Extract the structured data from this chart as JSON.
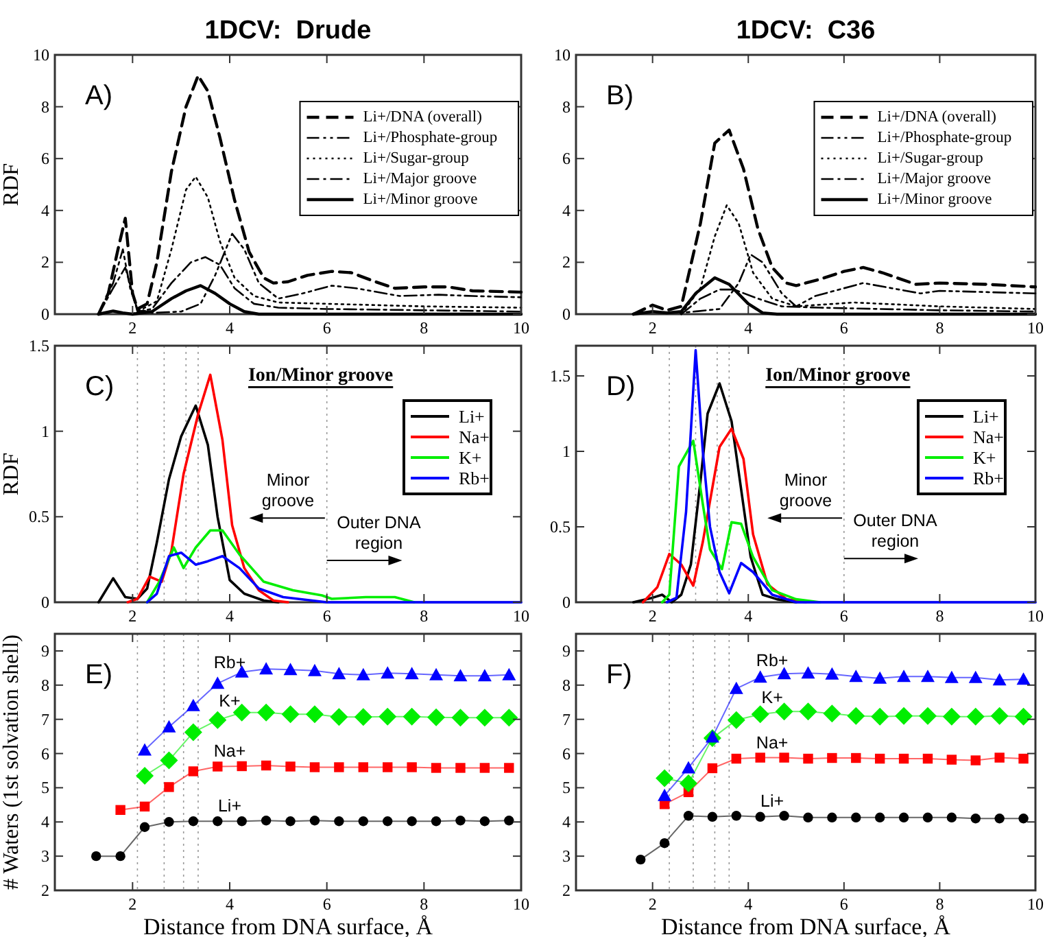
{
  "chart_data": [
    {
      "type": "line",
      "title": "1DCV:  Drude",
      "ylabel": "RDF",
      "annotations": [
        "A)"
      ],
      "xlim": [
        0.4,
        10
      ],
      "xticks": [
        2,
        4,
        6,
        8,
        10
      ],
      "ylim": [
        0,
        10
      ],
      "yticks": [
        0,
        2,
        4,
        6,
        8,
        10
      ],
      "legend": "top right",
      "series": [
        {
          "name": "Li+/DNA (overall)",
          "color": "#000000",
          "line_style": "dashed",
          "x": [
            1.3,
            1.5,
            1.7,
            1.85,
            2.0,
            2.1,
            2.3,
            2.5,
            2.8,
            3.1,
            3.35,
            3.55,
            3.8,
            4.1,
            4.4,
            4.7,
            4.9,
            5.2,
            5.6,
            6.1,
            6.5,
            7,
            7.4,
            8,
            8.5,
            9,
            10
          ],
          "values": [
            0,
            0.8,
            2.5,
            3.7,
            0.8,
            0.2,
            0.4,
            2,
            5.5,
            8,
            9.2,
            8.6,
            6.8,
            4.4,
            2.4,
            1.4,
            1.2,
            1.25,
            1.5,
            1.65,
            1.6,
            1.25,
            1.0,
            1.05,
            1.05,
            0.9,
            0.85
          ]
        },
        {
          "name": "Li+/Phosphate-group",
          "color": "#000000",
          "line_style": "dashdotdot",
          "x": [
            1.3,
            1.6,
            1.8,
            1.95,
            2.1,
            2.4,
            3.0,
            3.4,
            3.7,
            4.05,
            4.3,
            4.6,
            5.0,
            5.5,
            6.1,
            6.6,
            7.5,
            8.3,
            9,
            10
          ],
          "values": [
            0,
            1.2,
            2.5,
            1.0,
            0.2,
            0.05,
            0.1,
            0.4,
            1.5,
            3.1,
            2.5,
            1.2,
            0.6,
            0.8,
            1.1,
            1.0,
            0.7,
            0.75,
            0.7,
            0.65
          ]
        },
        {
          "name": "Li+/Sugar-group",
          "color": "#000000",
          "line_style": "dotted",
          "x": [
            2.0,
            2.5,
            2.8,
            3.1,
            3.3,
            3.55,
            3.8,
            4.1,
            4.5,
            5,
            6,
            8,
            10
          ],
          "values": [
            0,
            0.5,
            2.5,
            4.8,
            5.3,
            4.5,
            2.8,
            1.4,
            0.7,
            0.45,
            0.4,
            0.3,
            0.25
          ]
        },
        {
          "name": "Li+/Major groove",
          "color": "#000000",
          "line_style": "dashdot",
          "x": [
            1.3,
            1.6,
            1.85,
            2.0,
            2.1,
            2.4,
            2.8,
            3.2,
            3.5,
            3.8,
            4.1,
            4.5,
            5,
            6,
            8,
            10
          ],
          "values": [
            0,
            1.0,
            1.8,
            0.8,
            0.1,
            0.2,
            1.2,
            2.0,
            2.2,
            1.9,
            1.0,
            0.4,
            0.25,
            0.2,
            0.15,
            0.1
          ]
        },
        {
          "name": "Li+/Minor groove",
          "color": "#000000",
          "line_style": "solid",
          "x": [
            1.3,
            1.6,
            1.8,
            2.0,
            2.4,
            2.8,
            3.1,
            3.4,
            3.7,
            4.0,
            4.3,
            4.6,
            10
          ],
          "values": [
            0,
            0.12,
            0.05,
            0,
            0.1,
            0.6,
            0.9,
            1.1,
            0.8,
            0.4,
            0.1,
            0,
            0
          ]
        }
      ]
    },
    {
      "type": "line",
      "title": "1DCV:  C36",
      "annotations": [
        "B)"
      ],
      "xlim": [
        0.4,
        10
      ],
      "xticks": [
        2,
        4,
        6,
        8,
        10
      ],
      "ylim": [
        0,
        10
      ],
      "yticks": [
        0,
        2,
        4,
        6,
        8,
        10
      ],
      "legend": "top right",
      "series": [
        {
          "name": "Li+/DNA (overall)",
          "color": "#000000",
          "line_style": "dashed",
          "x": [
            1.6,
            2.0,
            2.3,
            2.6,
            3.0,
            3.3,
            3.6,
            3.9,
            4.2,
            4.5,
            4.8,
            5.0,
            5.5,
            6.0,
            6.4,
            6.8,
            7.5,
            8,
            9,
            10
          ],
          "values": [
            0,
            0.35,
            0.15,
            0.3,
            3.5,
            6.6,
            7.1,
            5.6,
            3.3,
            1.8,
            1.2,
            1.1,
            1.35,
            1.65,
            1.8,
            1.6,
            1.15,
            1.2,
            1.15,
            1.05
          ]
        },
        {
          "name": "Li+/Phosphate-group",
          "color": "#000000",
          "line_style": "dashdotdot",
          "x": [
            1.6,
            2.0,
            2.6,
            3.4,
            3.8,
            4.05,
            4.3,
            4.7,
            5.0,
            5.4,
            6.0,
            6.4,
            7,
            7.6,
            8,
            9,
            10
          ],
          "values": [
            0,
            0.1,
            0.05,
            0.2,
            1.2,
            2.3,
            2.0,
            0.8,
            0.3,
            0.7,
            1.0,
            1.2,
            1.0,
            0.8,
            0.9,
            0.85,
            0.8
          ]
        },
        {
          "name": "Li+/Sugar-group",
          "color": "#000000",
          "line_style": "dotted",
          "x": [
            2.6,
            3.0,
            3.3,
            3.55,
            3.8,
            4.1,
            4.5,
            5,
            6.2,
            8,
            10
          ],
          "values": [
            0,
            1.0,
            3.0,
            4.2,
            3.5,
            1.6,
            0.6,
            0.3,
            0.45,
            0.3,
            0.2
          ]
        },
        {
          "name": "Li+/Major groove",
          "color": "#000000",
          "line_style": "dashdot",
          "x": [
            2.6,
            3.0,
            3.4,
            3.7,
            4.2,
            4.7,
            5.5,
            8,
            10
          ],
          "values": [
            0,
            0.6,
            0.95,
            0.95,
            0.6,
            0.3,
            0.25,
            0.15,
            0.1
          ]
        },
        {
          "name": "Li+/Minor groove",
          "color": "#000000",
          "line_style": "solid",
          "x": [
            1.6,
            2.0,
            2.3,
            2.6,
            2.9,
            3.3,
            3.6,
            4.0,
            4.3,
            4.6,
            10
          ],
          "values": [
            0,
            0.1,
            0.05,
            0.1,
            0.8,
            1.4,
            1.15,
            0.4,
            0.05,
            0,
            0
          ]
        }
      ]
    },
    {
      "type": "line",
      "ylabel": "RDF",
      "annotations": [
        "C)",
        "Ion/Minor groove",
        "Minor groove",
        {
          "text": "Outer DNA region",
          "x": 6,
          "y": 0.245
        }
      ],
      "xlim": [
        0.4,
        10
      ],
      "xticks": [
        2,
        4,
        6,
        8,
        10
      ],
      "ylim": [
        0,
        1.5
      ],
      "yticks": [
        0,
        0.5,
        1,
        1.5
      ],
      "legend": "top right",
      "ref_lines": [
        {
          "axis": "x",
          "value": 2.1,
          "line_style": "dotted"
        },
        {
          "axis": "x",
          "value": 2.65,
          "line_style": "dotted"
        },
        {
          "axis": "x",
          "value": 3.1,
          "line_style": "dotted"
        },
        {
          "axis": "x",
          "value": 3.35,
          "line_style": "dotted"
        },
        {
          "axis": "x",
          "value": 6,
          "line_style": "dotted"
        }
      ],
      "series": [
        {
          "name": "Li+",
          "color": "#000000",
          "x": [
            1.3,
            1.6,
            1.85,
            2.1,
            2.3,
            2.5,
            2.75,
            3.0,
            3.3,
            3.55,
            3.75,
            4.0,
            4.3,
            4.7,
            5
          ],
          "values": [
            0,
            0.14,
            0.03,
            0.02,
            0.08,
            0.35,
            0.72,
            0.97,
            1.15,
            0.92,
            0.5,
            0.13,
            0.05,
            0.01,
            0
          ]
        },
        {
          "name": "Na+",
          "color": "#ff0000",
          "x": [
            1.9,
            2.1,
            2.35,
            2.6,
            2.8,
            3.05,
            3.35,
            3.6,
            3.85,
            4.05,
            4.3,
            4.6,
            4.9,
            5.2
          ],
          "values": [
            0,
            0.02,
            0.15,
            0.12,
            0.3,
            0.75,
            1.1,
            1.33,
            0.95,
            0.45,
            0.2,
            0.07,
            0.01,
            0
          ]
        },
        {
          "name": "K+",
          "color": "#00ee00",
          "x": [
            2.3,
            2.55,
            2.85,
            3.05,
            3.3,
            3.6,
            3.85,
            4.2,
            4.7,
            5.3,
            5.9,
            6.1,
            6.8,
            7.4,
            7.8
          ],
          "values": [
            0,
            0.12,
            0.32,
            0.2,
            0.32,
            0.42,
            0.42,
            0.28,
            0.12,
            0.07,
            0.04,
            0.02,
            0.03,
            0.03,
            0
          ]
        },
        {
          "name": "Rb+",
          "color": "#0000ff",
          "x": [
            2.3,
            2.5,
            2.75,
            3.0,
            3.3,
            3.55,
            3.85,
            4.2,
            4.6,
            5.1,
            5.7,
            6,
            10
          ],
          "values": [
            0,
            0.05,
            0.27,
            0.29,
            0.22,
            0.24,
            0.27,
            0.2,
            0.08,
            0.03,
            0.01,
            0,
            0
          ]
        }
      ]
    },
    {
      "type": "line",
      "annotations": [
        "D)",
        "Ion/Minor groove",
        "Minor groove",
        {
          "text": "Outer DNA region",
          "x": 6,
          "y": 0.29
        }
      ],
      "xlim": [
        0.4,
        10
      ],
      "xticks": [
        2,
        4,
        6,
        8,
        10
      ],
      "ylim": [
        0,
        1.7
      ],
      "yticks": [
        0,
        0.5,
        1,
        1.5
      ],
      "legend": "top right",
      "ref_lines": [
        {
          "axis": "x",
          "value": 2.35,
          "line_style": "dotted"
        },
        {
          "axis": "x",
          "value": 2.9,
          "line_style": "dotted"
        },
        {
          "axis": "x",
          "value": 3.35,
          "line_style": "dotted"
        },
        {
          "axis": "x",
          "value": 3.6,
          "line_style": "dotted"
        },
        {
          "axis": "x",
          "value": 6,
          "line_style": "dotted"
        }
      ],
      "series": [
        {
          "name": "Li+",
          "color": "#000000",
          "x": [
            1.6,
            2.0,
            2.2,
            2.4,
            2.6,
            2.8,
            3.0,
            3.15,
            3.4,
            3.65,
            3.85,
            4.05,
            4.3,
            4.6,
            5
          ],
          "values": [
            0,
            0.03,
            0.05,
            0,
            0.05,
            0.25,
            0.8,
            1.25,
            1.45,
            1.2,
            0.75,
            0.3,
            0.05,
            0.02,
            0
          ]
        },
        {
          "name": "Na+",
          "color": "#ff0000",
          "x": [
            1.8,
            2.1,
            2.35,
            2.6,
            2.85,
            3.05,
            3.4,
            3.65,
            3.9,
            4.1,
            4.4,
            4.8,
            5.2
          ],
          "values": [
            0,
            0.1,
            0.32,
            0.25,
            0.11,
            0.4,
            1.03,
            1.15,
            0.95,
            0.45,
            0.12,
            0.02,
            0
          ]
        },
        {
          "name": "K+",
          "color": "#00ee00",
          "x": [
            2.2,
            2.35,
            2.55,
            2.85,
            3.05,
            3.2,
            3.45,
            3.65,
            3.85,
            4.1,
            4.5,
            5,
            5.5
          ],
          "values": [
            0,
            0.05,
            0.9,
            1.07,
            0.65,
            0.35,
            0.22,
            0.53,
            0.52,
            0.3,
            0.08,
            0.02,
            0
          ]
        },
        {
          "name": "Rb+",
          "color": "#0000ff",
          "x": [
            2.3,
            2.5,
            2.7,
            2.9,
            3.05,
            3.2,
            3.4,
            3.6,
            3.85,
            4.1,
            4.5,
            5,
            10
          ],
          "values": [
            0,
            0.03,
            0.6,
            1.67,
            1.0,
            0.5,
            0.2,
            0.06,
            0.26,
            0.2,
            0.05,
            0,
            0
          ]
        }
      ]
    },
    {
      "type": "line",
      "xlabel": "Distance from DNA surface, Å",
      "ylabel": "# Waters (1st solvation shell)",
      "annotations": [
        "E)"
      ],
      "xlim": [
        0.4,
        10
      ],
      "xticks": [
        2,
        4,
        6,
        8,
        10
      ],
      "ylim": [
        2,
        9.5
      ],
      "yticks": [
        2,
        3,
        4,
        5,
        6,
        7,
        8,
        9
      ],
      "ref_lines": [
        {
          "axis": "x",
          "value": 2.1,
          "line_style": "dotted"
        },
        {
          "axis": "x",
          "value": 2.65,
          "line_style": "dotted"
        },
        {
          "axis": "x",
          "value": 3.05,
          "line_style": "dotted"
        },
        {
          "axis": "x",
          "value": 3.35,
          "line_style": "dotted"
        }
      ],
      "x": [
        1.25,
        1.75,
        2.25,
        2.75,
        3.25,
        3.75,
        4.25,
        4.75,
        5.25,
        5.75,
        6.25,
        6.75,
        7.25,
        7.75,
        8.25,
        8.75,
        9.25,
        9.75
      ],
      "series": [
        {
          "name": "Li+",
          "color": "#000000",
          "marker": "circle",
          "values": [
            3.0,
            3.0,
            3.85,
            4.0,
            4.02,
            4.02,
            4.02,
            4.04,
            4.02,
            4.04,
            4.02,
            4.02,
            4.02,
            4.02,
            4.02,
            4.04,
            4.02,
            4.04
          ]
        },
        {
          "name": "Na+",
          "color": "#ff0000",
          "marker": "square",
          "values": [
            null,
            4.35,
            4.45,
            5.02,
            5.48,
            5.62,
            5.63,
            5.65,
            5.62,
            5.6,
            5.6,
            5.6,
            5.6,
            5.6,
            5.58,
            5.58,
            5.58,
            5.58
          ]
        },
        {
          "name": "K+",
          "color": "#00ee00",
          "marker": "diamond",
          "values": [
            null,
            null,
            5.35,
            5.8,
            6.62,
            6.98,
            7.2,
            7.2,
            7.15,
            7.15,
            7.07,
            7.07,
            7.08,
            7.08,
            7.06,
            7.05,
            7.05,
            7.05
          ]
        },
        {
          "name": "Rb+",
          "color": "#0000ff",
          "marker": "triangle",
          "values": [
            null,
            null,
            6.1,
            6.78,
            7.4,
            8.05,
            8.38,
            8.47,
            8.45,
            8.42,
            8.33,
            8.3,
            8.35,
            8.33,
            8.3,
            8.27,
            8.27,
            8.3
          ]
        }
      ]
    },
    {
      "type": "line",
      "xlabel": "Distance from DNA surface, Å",
      "annotations": [
        "F)"
      ],
      "xlim": [
        0.4,
        10
      ],
      "xticks": [
        2,
        4,
        6,
        8,
        10
      ],
      "ylim": [
        2,
        9.5
      ],
      "yticks": [
        2,
        3,
        4,
        5,
        6,
        7,
        8,
        9
      ],
      "ref_lines": [
        {
          "axis": "x",
          "value": 2.35,
          "line_style": "dotted"
        },
        {
          "axis": "x",
          "value": 2.85,
          "line_style": "dotted"
        },
        {
          "axis": "x",
          "value": 3.3,
          "line_style": "dotted"
        },
        {
          "axis": "x",
          "value": 3.6,
          "line_style": "dotted"
        }
      ],
      "x": [
        1.75,
        2.25,
        2.75,
        3.25,
        3.75,
        4.25,
        4.75,
        5.25,
        5.75,
        6.25,
        6.75,
        7.25,
        7.75,
        8.25,
        8.75,
        9.25,
        9.75
      ],
      "series": [
        {
          "name": "Li+",
          "color": "#000000",
          "marker": "circle",
          "values": [
            2.9,
            3.38,
            4.18,
            4.15,
            4.18,
            4.15,
            4.18,
            4.13,
            4.13,
            4.13,
            4.13,
            4.13,
            4.13,
            4.13,
            4.1,
            4.1,
            4.1
          ]
        },
        {
          "name": "Na+",
          "color": "#ff0000",
          "marker": "square",
          "values": [
            null,
            4.52,
            4.87,
            5.57,
            5.85,
            5.88,
            5.88,
            5.85,
            5.87,
            5.87,
            5.85,
            5.85,
            5.85,
            5.82,
            5.8,
            5.88,
            5.85
          ]
        },
        {
          "name": "K+",
          "color": "#00ee00",
          "marker": "diamond",
          "values": [
            null,
            5.28,
            5.13,
            6.45,
            6.98,
            7.15,
            7.23,
            7.23,
            7.17,
            7.1,
            7.08,
            7.1,
            7.1,
            7.08,
            7.08,
            7.1,
            7.08
          ]
        },
        {
          "name": "Rb+",
          "color": "#0000ff",
          "marker": "triangle",
          "values": [
            null,
            4.77,
            5.58,
            6.48,
            7.9,
            8.23,
            8.33,
            8.35,
            8.32,
            8.25,
            8.2,
            8.25,
            8.25,
            8.22,
            8.22,
            8.15,
            8.17
          ]
        }
      ]
    }
  ]
}
